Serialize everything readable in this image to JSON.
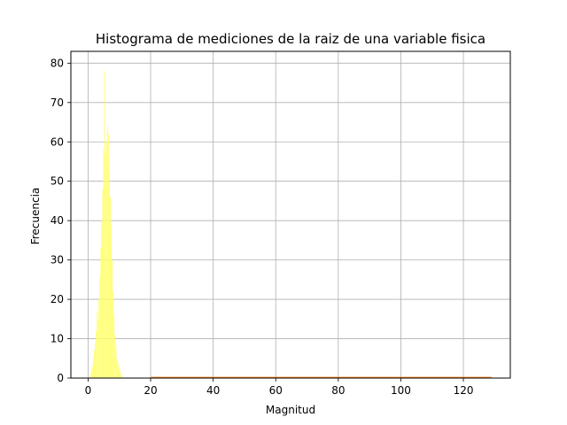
{
  "chart_data": {
    "type": "bar",
    "title": "Histograma de mediciones de la raiz de una variable fisica",
    "xlabel": "Magnitud",
    "ylabel": "Frecuencia",
    "xlim": [
      -5.5,
      135
    ],
    "ylim": [
      0,
      83
    ],
    "xticks": [
      0,
      20,
      40,
      60,
      80,
      100,
      120
    ],
    "yticks": [
      0,
      10,
      20,
      30,
      40,
      50,
      60,
      70,
      80
    ],
    "grid": true,
    "bar_color": "#ffff66",
    "tail_color": "#ff7f0e",
    "bin_width": 0.3,
    "bins": [
      {
        "x": 0.8,
        "y": 1
      },
      {
        "x": 1.1,
        "y": 2
      },
      {
        "x": 1.4,
        "y": 3
      },
      {
        "x": 1.7,
        "y": 5
      },
      {
        "x": 2.0,
        "y": 7
      },
      {
        "x": 2.3,
        "y": 9
      },
      {
        "x": 2.6,
        "y": 12
      },
      {
        "x": 2.9,
        "y": 17
      },
      {
        "x": 3.2,
        "y": 15
      },
      {
        "x": 3.5,
        "y": 20
      },
      {
        "x": 3.8,
        "y": 26
      },
      {
        "x": 4.1,
        "y": 33
      },
      {
        "x": 4.4,
        "y": 40
      },
      {
        "x": 4.7,
        "y": 48
      },
      {
        "x": 5.0,
        "y": 58
      },
      {
        "x": 5.3,
        "y": 78
      },
      {
        "x": 5.6,
        "y": 57
      },
      {
        "x": 5.9,
        "y": 60
      },
      {
        "x": 6.2,
        "y": 64
      },
      {
        "x": 6.5,
        "y": 62
      },
      {
        "x": 6.8,
        "y": 52
      },
      {
        "x": 7.1,
        "y": 46
      },
      {
        "x": 7.4,
        "y": 39
      },
      {
        "x": 7.7,
        "y": 30
      },
      {
        "x": 8.0,
        "y": 22
      },
      {
        "x": 8.3,
        "y": 16
      },
      {
        "x": 8.6,
        "y": 11
      },
      {
        "x": 8.9,
        "y": 8
      },
      {
        "x": 9.2,
        "y": 5
      },
      {
        "x": 9.5,
        "y": 4
      },
      {
        "x": 9.8,
        "y": 3
      },
      {
        "x": 10.1,
        "y": 2
      },
      {
        "x": 10.4,
        "y": 1
      },
      {
        "x": 10.7,
        "y": 1
      }
    ],
    "tail_range": [
      20,
      129
    ]
  }
}
